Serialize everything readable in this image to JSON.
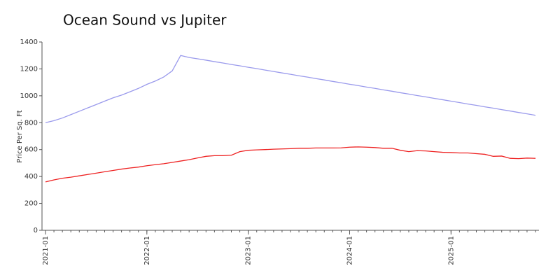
{
  "chart_data": {
    "type": "line",
    "title": "Ocean Sound vs Jupiter",
    "y_label": "Price Per Sq. Ft",
    "x": [
      "2021-01",
      "2021-02",
      "2021-03",
      "2021-04",
      "2021-05",
      "2021-06",
      "2021-07",
      "2021-08",
      "2021-09",
      "2021-10",
      "2021-11",
      "2021-12",
      "2022-01",
      "2022-02",
      "2022-03",
      "2022-04",
      "2022-05",
      "2022-06",
      "2022-07",
      "2022-08",
      "2022-09",
      "2022-10",
      "2022-11",
      "2022-12",
      "2023-01",
      "2023-02",
      "2023-03",
      "2023-04",
      "2023-05",
      "2023-06",
      "2023-07",
      "2023-08",
      "2023-09",
      "2023-10",
      "2023-11",
      "2023-12",
      "2024-01",
      "2024-02",
      "2024-03",
      "2024-04",
      "2024-05",
      "2024-06",
      "2024-07",
      "2024-08",
      "2024-09",
      "2024-10",
      "2024-11",
      "2024-12",
      "2025-01",
      "2025-02",
      "2025-03",
      "2025-04",
      "2025-05",
      "2025-06",
      "2025-07",
      "2025-08",
      "2025-09",
      "2025-10",
      "2025-11"
    ],
    "series": [
      {
        "color": "#9a9aec",
        "values": [
          800,
          815,
          835,
          860,
          885,
          910,
          935,
          960,
          985,
          1005,
          1030,
          1055,
          1085,
          1110,
          1140,
          1185,
          1300,
          1285,
          1275,
          1265,
          1254,
          1244,
          1233,
          1223,
          1212,
          1202,
          1191,
          1181,
          1170,
          1160,
          1149,
          1139,
          1128,
          1118,
          1107,
          1097,
          1086,
          1076,
          1065,
          1055,
          1044,
          1034,
          1023,
          1013,
          1002,
          992,
          981,
          971,
          960,
          950,
          939,
          929,
          918,
          908,
          897,
          887,
          876,
          866,
          855
        ]
      },
      {
        "color": "#ee2222",
        "values": [
          360,
          375,
          387,
          395,
          405,
          415,
          425,
          435,
          445,
          455,
          463,
          470,
          480,
          488,
          495,
          505,
          515,
          525,
          538,
          550,
          555,
          555,
          558,
          585,
          595,
          598,
          600,
          603,
          605,
          607,
          610,
          610,
          612,
          612,
          612,
          613,
          618,
          620,
          618,
          615,
          610,
          610,
          595,
          585,
          592,
          590,
          585,
          580,
          578,
          575,
          575,
          570,
          565,
          550,
          552,
          535,
          533,
          537,
          535
        ]
      }
    ],
    "ylim": [
      0,
      1400
    ],
    "yticks": [
      0,
      200,
      400,
      600,
      800,
      1000,
      1200,
      1400
    ],
    "xticks": [
      "2021-01",
      "2022-01",
      "2023-01",
      "2024-01",
      "2025-01"
    ]
  }
}
